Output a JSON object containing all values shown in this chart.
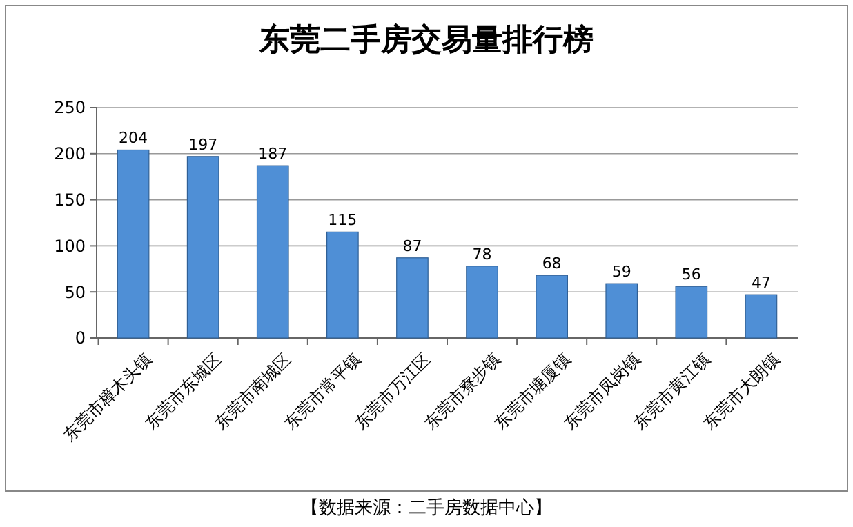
{
  "chart_data": {
    "type": "bar",
    "title": "东莞二手房交易量排行榜",
    "categories": [
      "东莞市樟木头镇",
      "东莞市东城区",
      "东莞市南城区",
      "东莞市常平镇",
      "东莞市万江区",
      "东莞市寮步镇",
      "东莞市塘厦镇",
      "东莞市凤岗镇",
      "东莞市黄江镇",
      "东莞市大朗镇"
    ],
    "values": [
      204,
      197,
      187,
      115,
      87,
      78,
      68,
      59,
      56,
      47
    ],
    "color": "#4f8fd6",
    "ylim": [
      0,
      250
    ],
    "yticks": [
      0,
      50,
      100,
      150,
      200,
      250
    ],
    "grid": "y",
    "data_labels": true,
    "annotations": [
      "【数据来源：二手房数据中心】"
    ]
  }
}
